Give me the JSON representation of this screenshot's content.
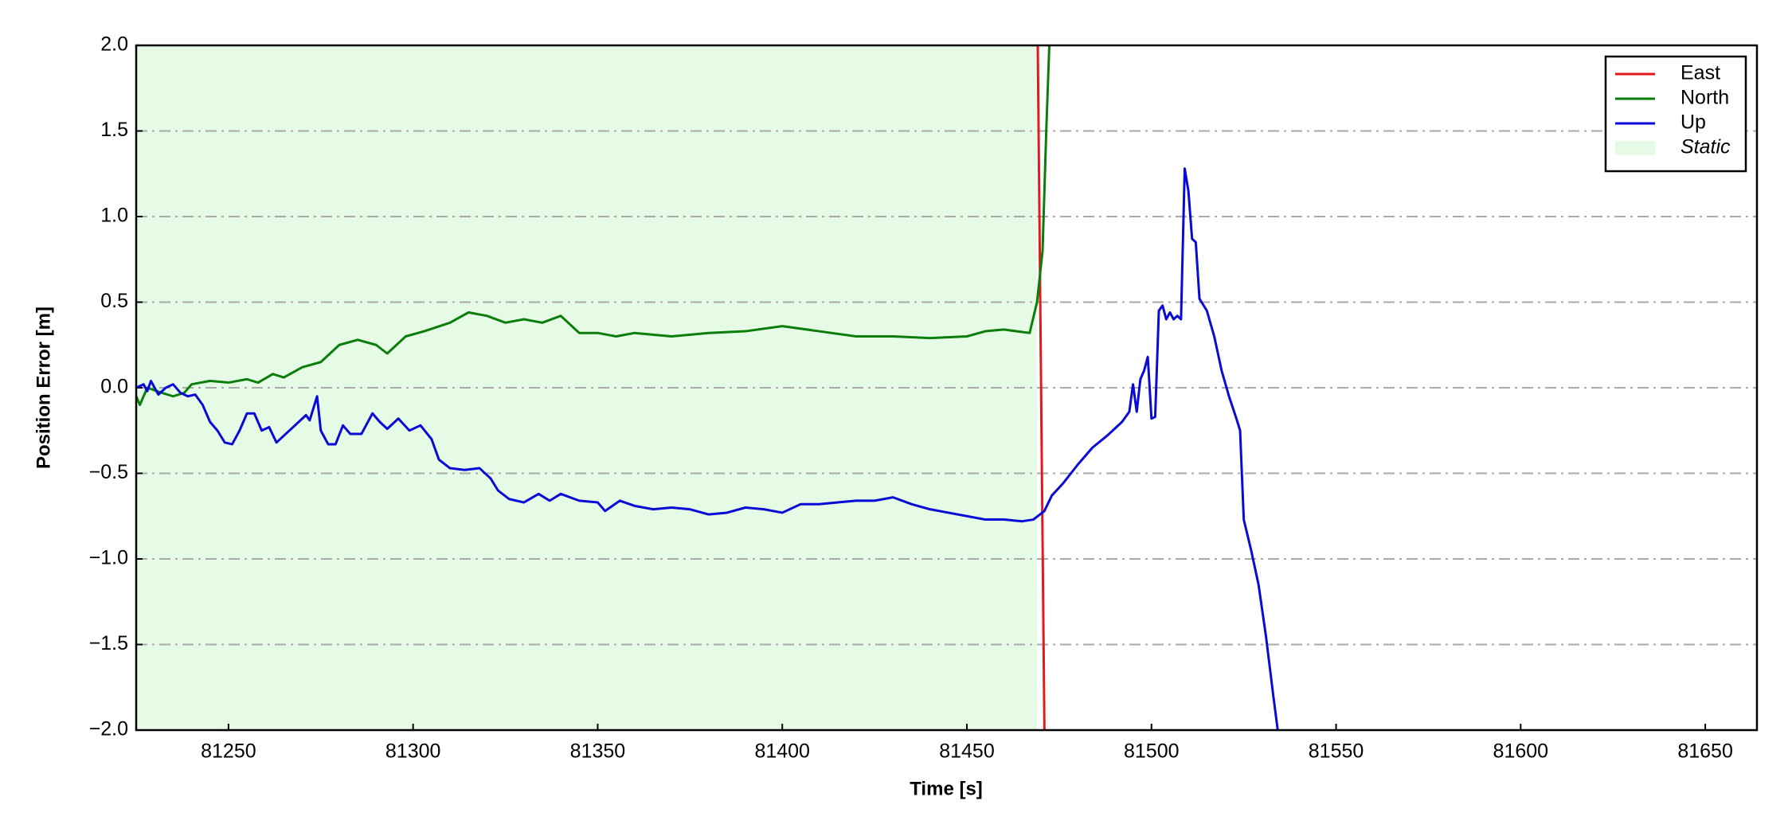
{
  "chart_data": {
    "type": "line",
    "x_label": "Time [s]",
    "y_label": "Position Error [m]",
    "xlim": [
      81225,
      81664
    ],
    "ylim": [
      -2,
      2
    ],
    "xticks": [
      81250,
      81300,
      81350,
      81400,
      81450,
      81500,
      81550,
      81600,
      81650
    ],
    "yticks": [
      {
        "value": -2,
        "label": "−2.0"
      },
      {
        "value": -1.5,
        "label": "−1.5"
      },
      {
        "value": -1,
        "label": "−1.0"
      },
      {
        "value": -0.5,
        "label": "−0.5"
      },
      {
        "value": 0,
        "label": "0.0"
      },
      {
        "value": 0.5,
        "label": "0.5"
      },
      {
        "value": 1,
        "label": "1.0"
      },
      {
        "value": 1.5,
        "label": "1.5"
      },
      {
        "value": 2,
        "label": "2.0"
      }
    ],
    "grid": true,
    "legend": "upper right",
    "static_span": {
      "name": "Static",
      "color": "#e6fbe6",
      "x": [
        81225,
        81469
      ]
    },
    "series": [
      {
        "name": "East",
        "color": "#e31a1c",
        "x": [
          81469.2,
          81471.0
        ],
        "values": [
          2.0,
          -2.0
        ]
      },
      {
        "name": "North",
        "color": "#0b7d0b",
        "x": [
          81225,
          81226,
          81228,
          81232,
          81235,
          81238,
          81240,
          81245,
          81250,
          81255,
          81258,
          81262,
          81265,
          81270,
          81275,
          81280,
          81285,
          81290,
          81293,
          81298,
          81303,
          81310,
          81315,
          81320,
          81325,
          81330,
          81335,
          81340,
          81345,
          81350,
          81355,
          81360,
          81370,
          81380,
          81390,
          81400,
          81410,
          81420,
          81430,
          81440,
          81450,
          81455,
          81460,
          81467,
          81469,
          81470.5,
          81471.5,
          81472.5
        ],
        "values": [
          -0.05,
          -0.1,
          0.0,
          -0.03,
          -0.05,
          -0.03,
          0.02,
          0.04,
          0.03,
          0.05,
          0.03,
          0.08,
          0.06,
          0.12,
          0.15,
          0.25,
          0.28,
          0.25,
          0.2,
          0.3,
          0.33,
          0.38,
          0.44,
          0.42,
          0.38,
          0.4,
          0.38,
          0.42,
          0.32,
          0.32,
          0.3,
          0.32,
          0.3,
          0.32,
          0.33,
          0.36,
          0.33,
          0.3,
          0.3,
          0.29,
          0.3,
          0.33,
          0.34,
          0.32,
          0.5,
          0.8,
          1.5,
          2.1
        ]
      },
      {
        "name": "Up",
        "color": "#0a0ad6",
        "x": [
          81225,
          81227,
          81228,
          81229,
          81231,
          81233,
          81235,
          81237,
          81239,
          81241,
          81243,
          81245,
          81247,
          81249,
          81251,
          81253,
          81255,
          81257,
          81259,
          81261,
          81263,
          81265,
          81268,
          81271,
          81272,
          81274,
          81275,
          81277,
          81279,
          81281,
          81283,
          81286,
          81289,
          81291,
          81293,
          81296,
          81299,
          81302,
          81305,
          81307,
          81310,
          81314,
          81318,
          81321,
          81323,
          81326,
          81330,
          81334,
          81337,
          81340,
          81345,
          81350,
          81352,
          81356,
          81360,
          81365,
          81370,
          81375,
          81380,
          81385,
          81390,
          81395,
          81400,
          81405,
          81410,
          81415,
          81420,
          81425,
          81430,
          81435,
          81440,
          81445,
          81450,
          81455,
          81460,
          81465,
          81468,
          81471,
          81473,
          81476,
          81480,
          81484,
          81488,
          81492,
          81494,
          81495,
          81496,
          81497,
          81498,
          81499,
          81500,
          81501,
          81502,
          81503,
          81504,
          81505,
          81506,
          81507,
          81508,
          81509,
          81510,
          81511,
          81512,
          81513,
          81515,
          81517,
          81519,
          81521,
          81523,
          81524,
          81525,
          81527,
          81529,
          81531,
          81533,
          81534.5
        ],
        "values": [
          0.0,
          0.02,
          -0.02,
          0.04,
          -0.04,
          0.0,
          0.02,
          -0.03,
          -0.05,
          -0.04,
          -0.1,
          -0.2,
          -0.25,
          -0.32,
          -0.33,
          -0.25,
          -0.15,
          -0.15,
          -0.25,
          -0.23,
          -0.32,
          -0.28,
          -0.22,
          -0.16,
          -0.19,
          -0.05,
          -0.25,
          -0.33,
          -0.33,
          -0.22,
          -0.27,
          -0.27,
          -0.15,
          -0.2,
          -0.24,
          -0.18,
          -0.25,
          -0.22,
          -0.3,
          -0.42,
          -0.47,
          -0.48,
          -0.47,
          -0.53,
          -0.6,
          -0.65,
          -0.67,
          -0.62,
          -0.66,
          -0.62,
          -0.66,
          -0.67,
          -0.72,
          -0.66,
          -0.69,
          -0.71,
          -0.7,
          -0.71,
          -0.74,
          -0.73,
          -0.7,
          -0.71,
          -0.73,
          -0.68,
          -0.68,
          -0.67,
          -0.66,
          -0.66,
          -0.64,
          -0.68,
          -0.71,
          -0.73,
          -0.75,
          -0.77,
          -0.77,
          -0.78,
          -0.77,
          -0.72,
          -0.63,
          -0.56,
          -0.45,
          -0.35,
          -0.28,
          -0.2,
          -0.14,
          0.02,
          -0.14,
          0.05,
          0.1,
          0.18,
          -0.18,
          -0.17,
          0.45,
          0.48,
          0.4,
          0.44,
          0.4,
          0.42,
          0.4,
          1.28,
          1.15,
          0.87,
          0.85,
          0.52,
          0.45,
          0.3,
          0.1,
          -0.05,
          -0.18,
          -0.25,
          -0.77,
          -0.95,
          -1.15,
          -1.45,
          -1.8,
          -2.05
        ]
      }
    ]
  }
}
